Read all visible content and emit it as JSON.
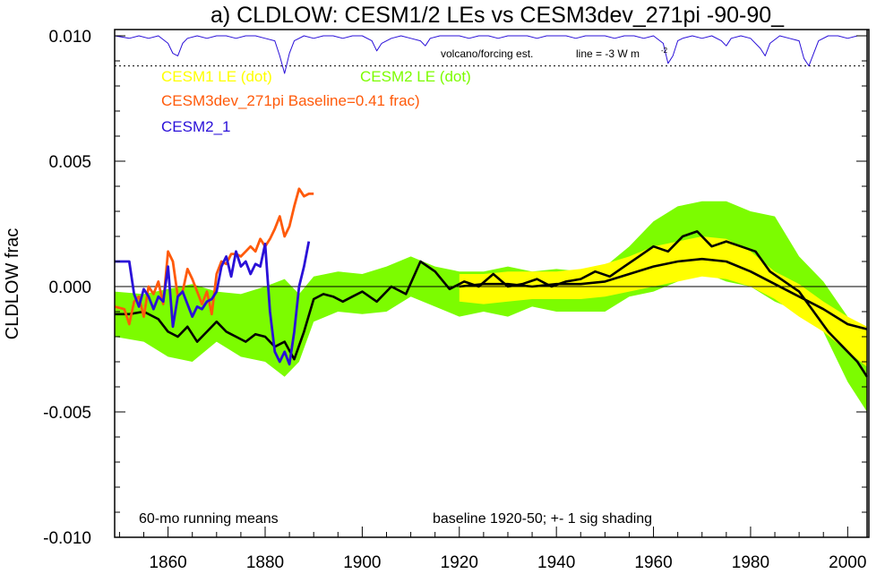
{
  "chart_data": {
    "type": "line",
    "title": "a) CLDLOW: CESM1/2 LEs vs CESM3dev_271pi -90-90_",
    "ylabel": "CLDLOW frac",
    "xlim": [
      1849,
      2004
    ],
    "ylim": [
      -0.01,
      0.01
    ],
    "x_ticks": [
      1860,
      1880,
      1900,
      1920,
      1940,
      1960,
      1980,
      2000
    ],
    "y_ticks": [
      {
        "value": 0.01,
        "label": "0.010"
      },
      {
        "value": 0.005,
        "label": "0.005"
      },
      {
        "value": 0.0,
        "label": "0.000"
      },
      {
        "value": -0.005,
        "label": "-0.005"
      },
      {
        "value": -0.01,
        "label": "-0.010"
      }
    ],
    "legend": [
      {
        "label": "CESM1 LE (dot)",
        "color": "#ffff00"
      },
      {
        "label": "CESM2 LE (dot)",
        "color": "#7cfc00"
      },
      {
        "label": "CESM3dev_271pi Baseline=0.41 frac)",
        "color": "#ff5a0a"
      },
      {
        "label": "CESM2_1",
        "color": "#2a10d8"
      }
    ],
    "annotations": {
      "left_bottom": "60-mo running means",
      "right_bottom": "baseline 1920-50; +- 1 sig shading",
      "volcano_label": "volcano/forcing est.",
      "line_label": "line = -3 W m",
      "line_label_sup": "-2"
    },
    "reference_lines": {
      "dotted_y": 0.0088,
      "zero_y": 0.0
    },
    "series": [
      {
        "name": "CESM2 LE (dot)",
        "kind": "band",
        "color": "#7cfc00",
        "x": [
          1849,
          1855,
          1860,
          1865,
          1870,
          1875,
          1880,
          1884,
          1887,
          1890,
          1895,
          1900,
          1905,
          1910,
          1915,
          1920,
          1925,
          1930,
          1935,
          1940,
          1945,
          1950,
          1955,
          1960,
          1965,
          1970,
          1975,
          1980,
          1985,
          1990,
          1995,
          2000,
          2004
        ],
        "lower": [
          -0.002,
          -0.0022,
          -0.0028,
          -0.003,
          -0.0022,
          -0.0028,
          -0.003,
          -0.0036,
          -0.003,
          -0.0014,
          -0.001,
          -0.0011,
          -0.001,
          -0.0004,
          -0.0008,
          -0.0012,
          -0.001,
          -0.0012,
          -0.0008,
          -0.001,
          -0.001,
          -0.001,
          -0.0004,
          -0.0002,
          0.0002,
          0.0006,
          0.0002,
          0.0,
          -0.0006,
          -0.001,
          -0.0018,
          -0.0038,
          -0.005
        ],
        "upper": [
          -0.0002,
          -0.0003,
          -0.0001,
          0.0001,
          -0.0002,
          -0.0003,
          0.0,
          0.0003,
          -0.0003,
          0.0004,
          0.0006,
          0.0005,
          0.0008,
          0.0012,
          0.0008,
          0.0006,
          0.0006,
          0.0008,
          0.0006,
          0.0007,
          0.0006,
          0.0008,
          0.0016,
          0.0026,
          0.0032,
          0.0034,
          0.0034,
          0.003,
          0.0028,
          0.0012,
          0.0002,
          -0.0012,
          -0.0026
        ]
      },
      {
        "name": "CESM1 LE (dot)",
        "kind": "band",
        "color": "#ffff00",
        "x": [
          1920,
          1925,
          1930,
          1935,
          1940,
          1945,
          1950,
          1955,
          1960,
          1965,
          1970,
          1975,
          1980,
          1985,
          1990,
          1995,
          2000,
          2004
        ],
        "lower": [
          -0.0006,
          -0.0007,
          -0.0006,
          -0.0005,
          -0.0005,
          -0.0005,
          -0.0004,
          -0.0002,
          0.0,
          0.0002,
          0.0004,
          0.0003,
          0.0,
          -0.0005,
          -0.0012,
          -0.0018,
          -0.0026,
          -0.0032
        ],
        "upper": [
          0.0005,
          0.0005,
          0.0006,
          0.0006,
          0.0006,
          0.0007,
          0.0009,
          0.0012,
          0.0016,
          0.0018,
          0.002,
          0.0019,
          0.0014,
          0.0006,
          0.0001,
          -0.0006,
          -0.0012,
          -0.0016
        ]
      },
      {
        "name": "CESM2 LE mean",
        "kind": "line",
        "color": "#000000",
        "x": [
          1849,
          1852,
          1855,
          1858,
          1860,
          1862,
          1864,
          1866,
          1868,
          1870,
          1872,
          1874,
          1876,
          1878,
          1880,
          1882,
          1884,
          1886,
          1888,
          1890,
          1892,
          1894,
          1896,
          1898,
          1900,
          1903,
          1906,
          1909,
          1912,
          1915,
          1918,
          1921,
          1924,
          1927,
          1930,
          1933,
          1936,
          1939,
          1942,
          1945,
          1948,
          1951,
          1954,
          1957,
          1960,
          1963,
          1966,
          1969,
          1972,
          1975,
          1978,
          1981,
          1984,
          1987,
          1990,
          1993,
          1996,
          1999,
          2002,
          2004
        ],
        "y": [
          -0.0011,
          -0.0011,
          -0.001,
          -0.0013,
          -0.0018,
          -0.002,
          -0.0016,
          -0.0022,
          -0.0018,
          -0.0014,
          -0.0018,
          -0.002,
          -0.0022,
          -0.0019,
          -0.002,
          -0.0024,
          -0.0022,
          -0.0029,
          -0.0018,
          -0.0005,
          -0.0003,
          -0.0004,
          -0.0006,
          -0.0004,
          -0.0002,
          -0.0006,
          0.0,
          -0.0003,
          0.001,
          0.0006,
          -0.0001,
          0.0002,
          0.0,
          0.0005,
          0.0,
          0.0001,
          0.0003,
          0.0,
          0.0002,
          0.0003,
          0.0006,
          0.0004,
          0.0008,
          0.0012,
          0.0016,
          0.0014,
          0.002,
          0.0022,
          0.0016,
          0.0018,
          0.0016,
          0.0014,
          0.0006,
          0.0002,
          -0.0002,
          -0.001,
          -0.0018,
          -0.0024,
          -0.003,
          -0.0036
        ]
      },
      {
        "name": "CESM1 LE mean",
        "kind": "line",
        "color": "#000000",
        "x": [
          1920,
          1925,
          1930,
          1935,
          1940,
          1945,
          1950,
          1955,
          1960,
          1965,
          1970,
          1975,
          1980,
          1985,
          1990,
          1995,
          2000,
          2004
        ],
        "y": [
          0.0,
          0.0001,
          0.0001,
          0.0,
          0.0001,
          0.0001,
          0.0002,
          0.0005,
          0.0008,
          0.001,
          0.0011,
          0.001,
          0.0006,
          0.0001,
          -0.0004,
          -0.0009,
          -0.0015,
          -0.0017
        ]
      },
      {
        "name": "CESM3dev_271pi Baseline=0.41 frac)",
        "kind": "line",
        "color": "#ff5a0a",
        "x": [
          1849,
          1851,
          1852,
          1853,
          1854,
          1855,
          1856,
          1857,
          1858,
          1859,
          1860,
          1861,
          1862,
          1863,
          1864,
          1865,
          1866,
          1867,
          1868,
          1869,
          1870,
          1871,
          1872,
          1873,
          1874,
          1875,
          1876,
          1877,
          1878,
          1879,
          1880,
          1881,
          1882,
          1883,
          1884,
          1885,
          1886,
          1887,
          1888,
          1889,
          1890
        ],
        "y": [
          -0.0008,
          -0.0009,
          -0.0015,
          -0.0006,
          -0.0004,
          -0.0012,
          0.0,
          -0.0003,
          0.0002,
          -0.0007,
          0.0014,
          0.001,
          -0.0004,
          -0.0002,
          0.0007,
          0.0003,
          -0.0002,
          -0.0007,
          -0.0002,
          -0.0011,
          0.0005,
          0.001,
          0.0009,
          0.0013,
          0.0013,
          0.0012,
          0.0014,
          0.0016,
          0.0014,
          0.0019,
          0.0016,
          0.0019,
          0.0023,
          0.0028,
          0.002,
          0.0024,
          0.0032,
          0.0039,
          0.0036,
          0.0037,
          0.0037
        ]
      },
      {
        "name": "CESM2_1",
        "kind": "line",
        "color": "#2a10d8",
        "x": [
          1849,
          1850,
          1852,
          1853,
          1854,
          1855,
          1856,
          1857,
          1858,
          1859,
          1860,
          1861,
          1862,
          1863,
          1864,
          1865,
          1866,
          1867,
          1868,
          1869,
          1870,
          1871,
          1872,
          1873,
          1874,
          1875,
          1876,
          1877,
          1878,
          1879,
          1880,
          1881,
          1882,
          1883,
          1884,
          1885,
          1886,
          1887,
          1888,
          1889
        ],
        "y": [
          0.001,
          0.001,
          0.001,
          -0.0003,
          -0.0008,
          -0.0001,
          -0.0004,
          -0.0009,
          -0.0004,
          -0.0006,
          0.0008,
          -0.0016,
          -0.0004,
          -0.0002,
          -0.0007,
          -0.0012,
          -0.0008,
          -0.0009,
          -0.0006,
          -0.0005,
          -0.0002,
          0.0008,
          0.0012,
          0.0004,
          0.0014,
          0.0008,
          0.001,
          0.0005,
          0.0009,
          0.0008,
          0.0017,
          -0.001,
          -0.0026,
          -0.003,
          -0.0026,
          -0.0031,
          -0.0018,
          0.0,
          0.0008,
          0.0018
        ]
      },
      {
        "name": "volcano/forcing est.",
        "kind": "line",
        "color": "#2a10d8",
        "x": [
          1849,
          1852,
          1854,
          1856,
          1858,
          1860,
          1861,
          1862,
          1863,
          1864,
          1866,
          1868,
          1870,
          1872,
          1874,
          1876,
          1878,
          1880,
          1882,
          1883,
          1884,
          1885,
          1886,
          1888,
          1890,
          1892,
          1894,
          1896,
          1898,
          1900,
          1902,
          1903,
          1904,
          1906,
          1908,
          1910,
          1912,
          1913,
          1914,
          1916,
          1918,
          1920,
          1922,
          1924,
          1926,
          1928,
          1930,
          1932,
          1934,
          1936,
          1938,
          1940,
          1942,
          1944,
          1946,
          1948,
          1950,
          1952,
          1954,
          1956,
          1958,
          1960,
          1962,
          1963,
          1964,
          1965,
          1966,
          1968,
          1970,
          1972,
          1974,
          1975,
          1976,
          1978,
          1980,
          1982,
          1983,
          1984,
          1986,
          1988,
          1990,
          1991,
          1992,
          1993,
          1994,
          1996,
          1998,
          2000,
          2002,
          2004
        ],
        "y": [
          0.01,
          0.0099,
          0.01,
          0.0099,
          0.01,
          0.0097,
          0.0093,
          0.0092,
          0.0097,
          0.0099,
          0.01,
          0.0099,
          0.01,
          0.01,
          0.0099,
          0.01,
          0.01,
          0.0099,
          0.0098,
          0.0092,
          0.0085,
          0.0093,
          0.0098,
          0.01,
          0.0099,
          0.01,
          0.01,
          0.0099,
          0.01,
          0.01,
          0.0098,
          0.0094,
          0.0097,
          0.0099,
          0.01,
          0.0099,
          0.0098,
          0.0096,
          0.0099,
          0.01,
          0.01,
          0.01,
          0.0099,
          0.01,
          0.01,
          0.0099,
          0.01,
          0.01,
          0.01,
          0.0099,
          0.01,
          0.01,
          0.01,
          0.0099,
          0.01,
          0.01,
          0.01,
          0.0099,
          0.01,
          0.01,
          0.0099,
          0.01,
          0.0097,
          0.0089,
          0.0092,
          0.0098,
          0.0099,
          0.01,
          0.0099,
          0.01,
          0.0098,
          0.0096,
          0.0099,
          0.01,
          0.0099,
          0.0095,
          0.0092,
          0.0097,
          0.01,
          0.0099,
          0.0098,
          0.0091,
          0.0088,
          0.0093,
          0.0098,
          0.01,
          0.01,
          0.0099,
          0.01,
          0.01
        ]
      }
    ]
  }
}
